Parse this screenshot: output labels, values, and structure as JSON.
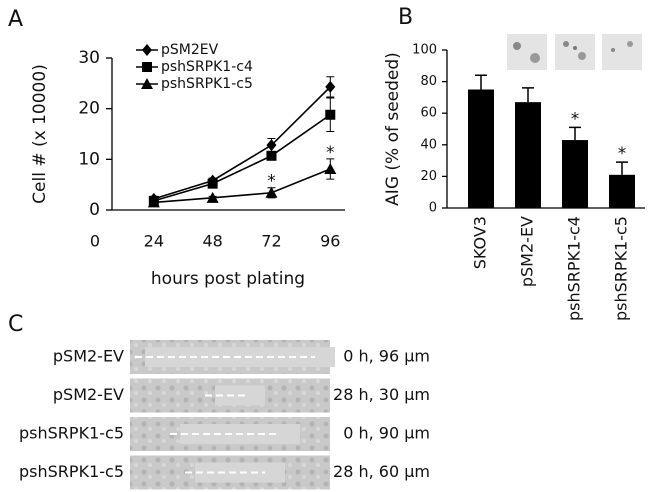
{
  "panels": [
    "A",
    "B",
    "C"
  ],
  "chart_data": [
    {
      "type": "line",
      "ylabel": "Cell # (x 10000)",
      "xlabel": "hours post plating",
      "x": [
        24,
        48,
        72,
        96
      ],
      "xlim": [
        0,
        102
      ],
      "xticks": [
        0,
        24,
        48,
        72,
        96
      ],
      "ylim": [
        0,
        30
      ],
      "yticks": [
        0,
        10,
        20,
        30
      ],
      "legend": "upper left",
      "series": [
        {
          "name": "pSM2EV",
          "color": "#000000",
          "marker": "diamond",
          "values": [
            2.2,
            5.8,
            12.8,
            24.3
          ],
          "errors": [
            0.5,
            0.5,
            1.3,
            2
          ]
        },
        {
          "name": "pshSRPK1-c4",
          "color": "#000000",
          "marker": "square",
          "values": [
            1.8,
            5.2,
            10.7,
            18.8
          ],
          "errors": [
            0.4,
            0.5,
            0.6,
            3.3
          ]
        },
        {
          "name": "pshSRPK1-c5",
          "color": "#000000",
          "marker": "triangle",
          "values": [
            1.5,
            2.4,
            3.4,
            8.1
          ],
          "errors": [
            0.3,
            0.3,
            1,
            2
          ]
        }
      ],
      "annotations": [
        {
          "x": 72,
          "text": "*"
        },
        {
          "x": 96,
          "text": "*"
        }
      ]
    },
    {
      "type": "bar",
      "ylabel": "AIG (% of seeded)",
      "categories": [
        "SKOV3",
        "pSM2-EV",
        "pshSRPK1-c4",
        "pshSRPK1-c5"
      ],
      "values": [
        75,
        67,
        43,
        21
      ],
      "errors": [
        9,
        9,
        8,
        8
      ],
      "color": "#000000",
      "ylim": [
        0,
        100
      ],
      "yticks": [
        0,
        20,
        40,
        60,
        80,
        100
      ],
      "annotations": [
        {
          "category": "pshSRPK1-c4",
          "text": "*"
        },
        {
          "category": "pshSRPK1-c5",
          "text": "*"
        }
      ]
    }
  ],
  "panel_c": {
    "rows": [
      {
        "label": "pSM2-EV",
        "caption": "0 h, 96 μm"
      },
      {
        "label": "pSM2-EV",
        "caption": "28 h, 30 μm"
      },
      {
        "label": "pshSRPK1-c5",
        "caption": "0 h, 90 μm"
      },
      {
        "label": "pshSRPK1-c5",
        "caption": "28 h, 60 μm"
      }
    ]
  }
}
